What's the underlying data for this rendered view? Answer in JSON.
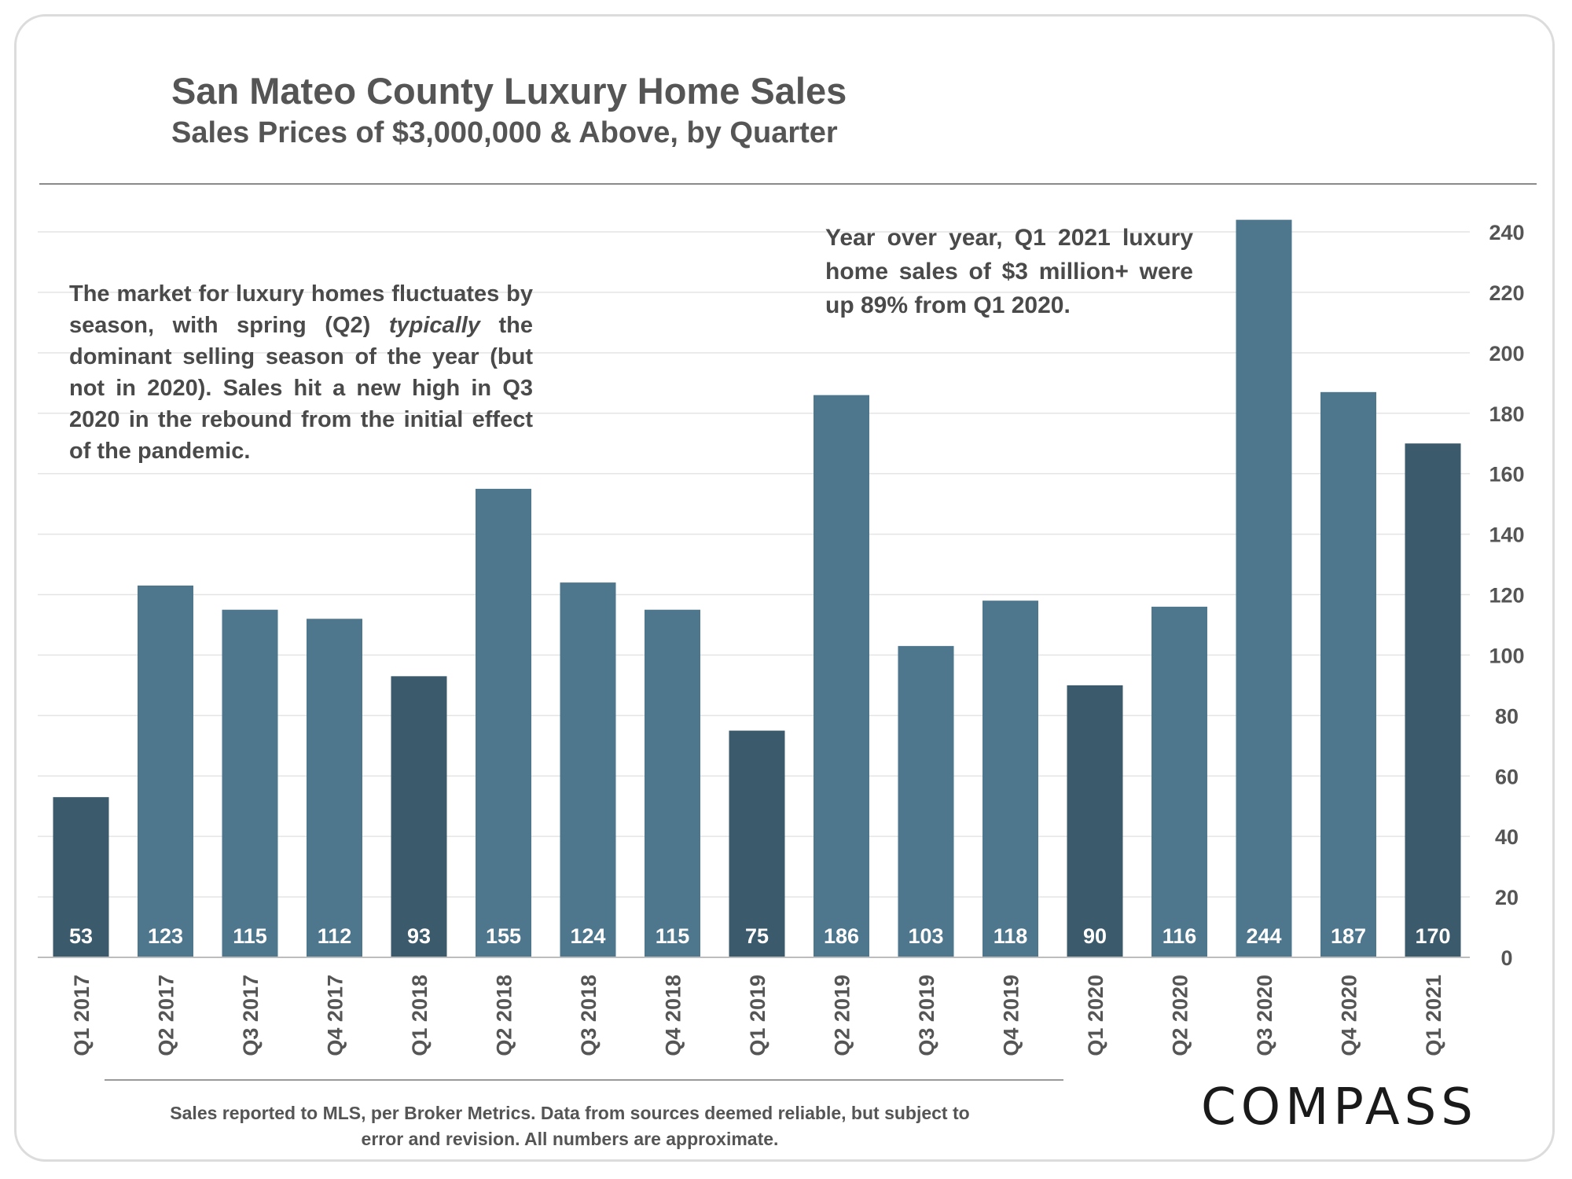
{
  "header": {
    "title": "San Mateo County Luxury Home Sales",
    "subtitle": "Sales Prices of $3,000,000 & Above, by Quarter"
  },
  "annotations": {
    "left_before": "The market for luxury homes fluctuates by season, with spring (Q2) ",
    "left_emph": "typically",
    "left_after": " the dominant selling season of the year (but not in 2020).  Sales hit a new high in Q3 2020 in the rebound from the initial effect of the pandemic.",
    "right": "Year over year, Q1 2021 luxury home sales of $3 million+ were up 89% from Q1 2020."
  },
  "footer": {
    "text": "Sales reported to MLS, per Broker Metrics. Data from sources deemed reliable, but subject to error and revision. All numbers are approximate."
  },
  "brand": {
    "logo_text": "COMPASS"
  },
  "colors": {
    "bar_default": "#4e778d",
    "bar_q1": "#3b5a6b",
    "label_text": "#ffffff",
    "grid": "#e4e4e4",
    "axis_text": "#555555"
  },
  "chart_data": {
    "type": "bar",
    "title": "San Mateo County Luxury Home Sales",
    "subtitle": "Sales Prices of $3,000,000 & Above, by Quarter",
    "categories": [
      "Q1 2017",
      "Q2 2017",
      "Q3 2017",
      "Q4 2017",
      "Q1 2018",
      "Q2 2018",
      "Q3 2018",
      "Q4 2018",
      "Q1 2019",
      "Q2 2019",
      "Q3 2019",
      "Q4 2019",
      "Q1 2020",
      "Q2 2020",
      "Q3 2020",
      "Q4 2020",
      "Q1 2021"
    ],
    "values": [
      53,
      123,
      115,
      112,
      93,
      155,
      124,
      115,
      75,
      186,
      103,
      118,
      90,
      116,
      244,
      187,
      170
    ],
    "ylim": [
      0,
      240
    ],
    "yticks": [
      0,
      20,
      40,
      60,
      80,
      100,
      120,
      140,
      160,
      180,
      200,
      220,
      240
    ],
    "y_axis_side": "right",
    "grid": true,
    "data_labels": "inside-bottom",
    "highlight": "Q1 quarters shown in darker color"
  }
}
